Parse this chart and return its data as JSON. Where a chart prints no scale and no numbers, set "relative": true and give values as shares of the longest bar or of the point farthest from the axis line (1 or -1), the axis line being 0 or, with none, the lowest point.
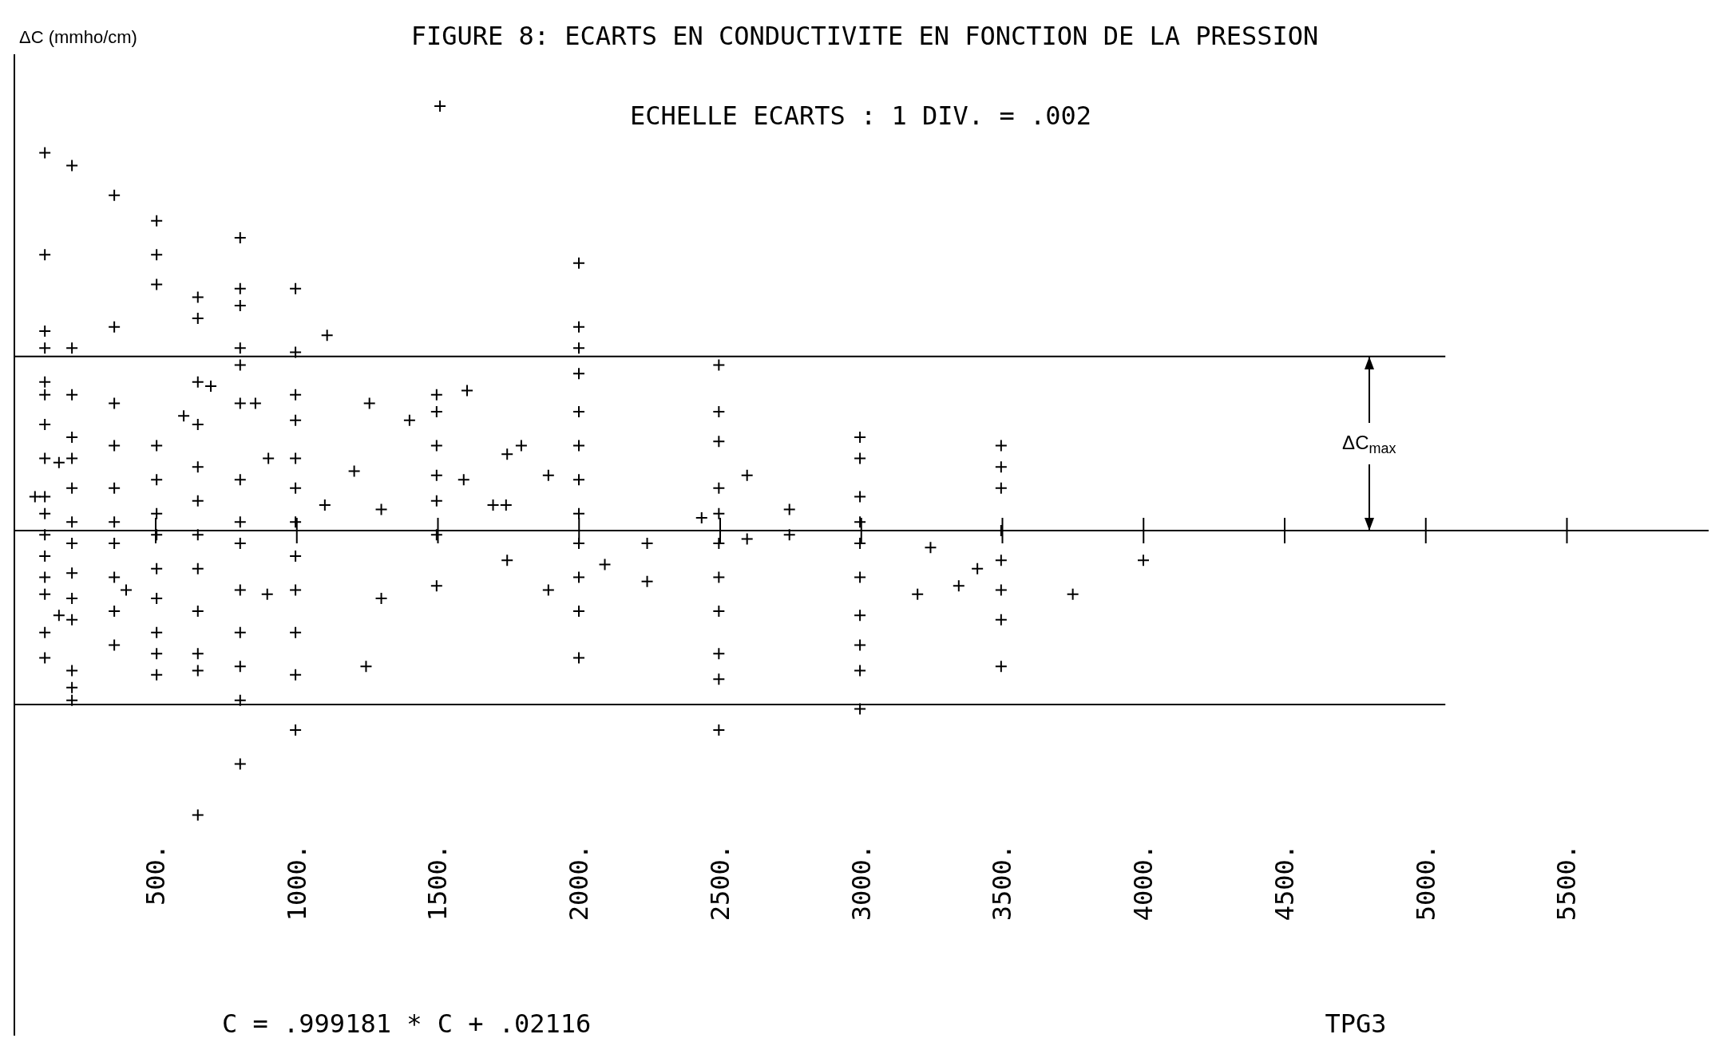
{
  "chart_data": {
    "type": "scatter",
    "title": "FIGURE 8: ECARTS EN CONDUCTIVITE EN FONCTION DE LA PRESSION",
    "ylabel": "ΔC (mmho/cm)",
    "relative": true,
    "marker": "cross",
    "color": "#000000",
    "grid": false,
    "legend": false,
    "xlim": [
      0,
      6000
    ],
    "xticks": [
      {
        "value": 500,
        "label": "500."
      },
      {
        "value": 1000,
        "label": "1000."
      },
      {
        "value": 1500,
        "label": "1500."
      },
      {
        "value": 2000,
        "label": "2000."
      },
      {
        "value": 2500,
        "label": "2500."
      },
      {
        "value": 3000,
        "label": "3000."
      },
      {
        "value": 3500,
        "label": "3500."
      },
      {
        "value": 4000,
        "label": "4000."
      },
      {
        "value": 4500,
        "label": "4500."
      },
      {
        "value": 5000,
        "label": "5000."
      },
      {
        "value": 5500,
        "label": "5500."
      }
    ],
    "x": [
      108,
      108,
      108,
      108,
      108,
      108,
      108,
      108,
      108,
      108,
      108,
      108,
      108,
      108,
      108,
      108,
      204,
      204,
      204,
      204,
      204,
      204,
      204,
      204,
      204,
      204,
      204,
      204,
      204,
      204,
      354,
      354,
      354,
      354,
      354,
      354,
      354,
      354,
      354,
      354,
      504,
      504,
      504,
      504,
      504,
      504,
      504,
      504,
      504,
      504,
      504,
      504,
      650,
      650,
      650,
      650,
      650,
      650,
      650,
      650,
      650,
      650,
      650,
      650,
      800,
      800,
      800,
      800,
      800,
      800,
      800,
      800,
      800,
      800,
      800,
      800,
      800,
      800,
      996,
      996,
      996,
      996,
      996,
      996,
      996,
      996,
      996,
      996,
      996,
      996,
      1496,
      1496,
      1496,
      1496,
      1496,
      1496,
      1496,
      2000,
      2000,
      2000,
      2000,
      2000,
      2000,
      2000,
      2000,
      2000,
      2000,
      2000,
      2000,
      2496,
      2496,
      2496,
      2496,
      2496,
      2496,
      2496,
      2496,
      2496,
      2496,
      2496,
      2996,
      2996,
      2996,
      2996,
      2996,
      2996,
      2996,
      2996,
      2996,
      2996,
      3496,
      3496,
      3496,
      3496,
      3496,
      3496,
      3496,
      3496,
      1508,
      1108,
      696,
      600,
      854,
      900,
      1204,
      1258,
      1400,
      1604,
      1592,
      1746,
      1796,
      1742,
      1696,
      1746,
      1892,
      1892,
      2092,
      2242,
      2242,
      2435,
      2596,
      2596,
      2746,
      2746,
      3246,
      3200,
      3346,
      3412,
      3750,
      4000,
      1246,
      1300,
      1300,
      1100,
      896,
      396,
      158,
      73,
      158
    ],
    "values": [
      0.89,
      0.65,
      0.47,
      0.43,
      0.35,
      0.32,
      0.25,
      0.17,
      0.08,
      0.04,
      -0.01,
      -0.06,
      -0.11,
      -0.15,
      -0.24,
      -0.3,
      0.86,
      0.43,
      0.32,
      0.22,
      0.17,
      0.1,
      0.02,
      -0.03,
      -0.1,
      -0.16,
      -0.21,
      -0.33,
      -0.37,
      -0.4,
      0.79,
      0.48,
      0.3,
      0.2,
      0.1,
      0.02,
      -0.03,
      -0.11,
      -0.19,
      -0.27,
      0.73,
      0.65,
      0.58,
      0.2,
      0.12,
      0.04,
      -0.01,
      -0.09,
      -0.16,
      -0.24,
      -0.29,
      -0.34,
      0.55,
      0.5,
      0.35,
      0.25,
      0.15,
      0.07,
      -0.01,
      -0.09,
      -0.19,
      -0.29,
      -0.33,
      -0.67,
      0.69,
      0.57,
      0.53,
      0.43,
      0.39,
      0.3,
      0.12,
      0.02,
      -0.03,
      -0.14,
      -0.24,
      -0.32,
      -0.4,
      -0.55,
      0.57,
      0.42,
      0.32,
      0.26,
      0.17,
      0.1,
      0.02,
      -0.06,
      -0.14,
      -0.24,
      -0.34,
      -0.47,
      0.32,
      0.28,
      0.2,
      0.13,
      0.07,
      -0.01,
      -0.13,
      0.63,
      0.48,
      0.43,
      0.37,
      0.28,
      0.2,
      0.12,
      0.04,
      -0.03,
      -0.11,
      -0.19,
      -0.3,
      0.39,
      0.28,
      0.21,
      0.1,
      0.04,
      -0.03,
      -0.11,
      -0.19,
      -0.29,
      -0.35,
      -0.47,
      0.22,
      0.17,
      0.08,
      0.02,
      -0.03,
      -0.11,
      -0.2,
      -0.27,
      -0.33,
      -0.42,
      0.2,
      0.15,
      0.1,
      0.0,
      -0.07,
      -0.14,
      -0.21,
      -0.32,
      1.0,
      0.46,
      0.34,
      0.27,
      0.3,
      0.17,
      0.14,
      0.3,
      0.26,
      0.33,
      0.12,
      0.18,
      0.2,
      0.06,
      0.06,
      -0.07,
      0.13,
      -0.14,
      -0.08,
      -0.03,
      -0.12,
      0.03,
      0.13,
      -0.02,
      0.05,
      -0.01,
      -0.04,
      -0.15,
      -0.13,
      -0.09,
      -0.15,
      -0.07,
      -0.32,
      -0.16,
      0.05,
      0.06,
      -0.15,
      -0.14,
      -0.2,
      0.08,
      0.16
    ],
    "ref_lines": [
      {
        "axis": "y",
        "value": 0.41,
        "color": "#000000"
      },
      {
        "axis": "y",
        "value": -0.41,
        "color": "#000000"
      }
    ],
    "annotations": [
      "ECHELLE ECARTS : 1 DIV. = .002",
      "ΔC$_{max}$",
      "C = .999181 * C + .02116",
      "TPG3"
    ]
  }
}
